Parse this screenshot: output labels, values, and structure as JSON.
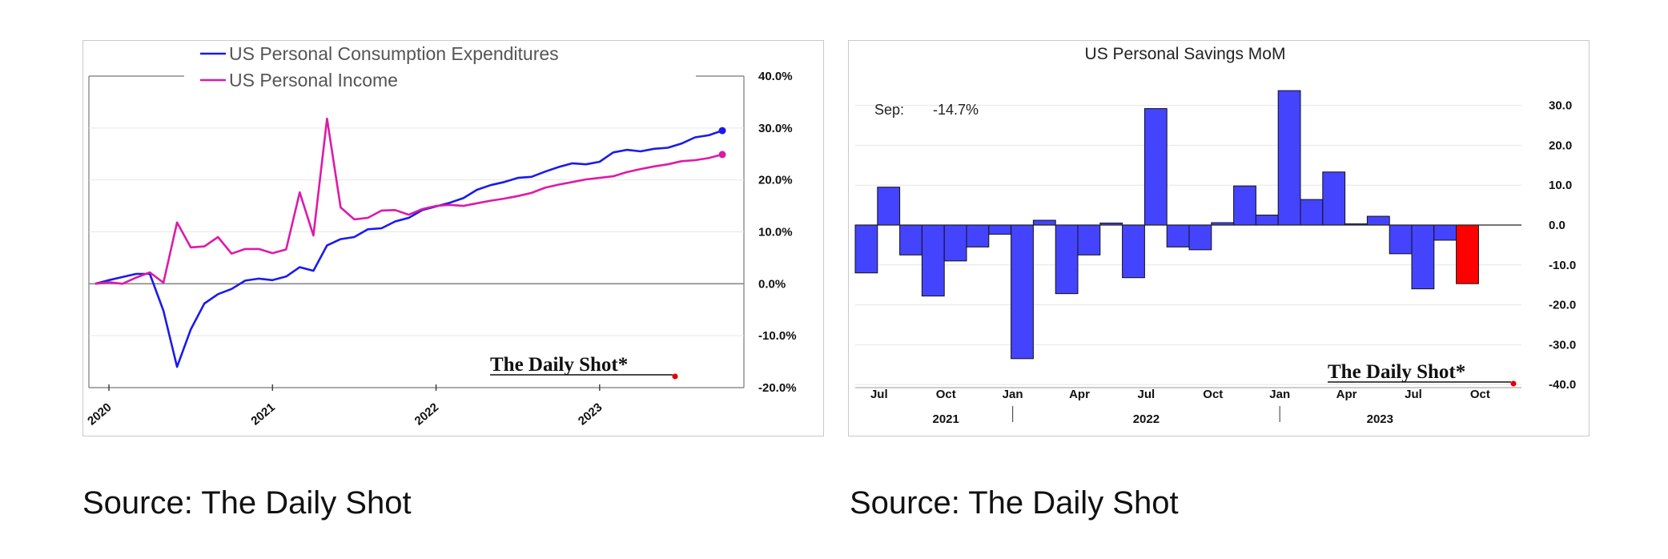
{
  "colors": {
    "pce": "#1a1aee",
    "income": "#dd1aa8",
    "bar": "#4444ff",
    "bar_highlight": "#ff0000",
    "brand_dot": "#e00000"
  },
  "brand": "The Daily Shot",
  "captions": [
    "Source: The Daily Shot",
    "Source: The Daily Shot"
  ],
  "chart_data": [
    {
      "type": "line",
      "title": "",
      "xlabel": "",
      "ylabel": "",
      "x_tick_labels": [
        "2020",
        "2021",
        "2022",
        "2023"
      ],
      "y_tick_labels": [
        "40.0%",
        "30.0%",
        "20.0%",
        "10.0%",
        "0.0%",
        "-10.0%",
        "-20.0%"
      ],
      "ylim": [
        -20,
        40
      ],
      "x_start": "2019-12",
      "grid": true,
      "legend_position": "top",
      "series": [
        {
          "name": "US Personal Consumption Expenditures",
          "color": "#1a1aee",
          "values": [
            0,
            0.7,
            1.3,
            1.9,
            1.9,
            -5.2,
            -16,
            -8.8,
            -3.8,
            -2,
            -1,
            0.6,
            1,
            0.7,
            1.4,
            3.2,
            2.5,
            7.4,
            8.6,
            9,
            10.5,
            10.7,
            12,
            12.7,
            14.2,
            14.9,
            15.6,
            16.5,
            18.1,
            19,
            19.6,
            20.4,
            20.6,
            21.6,
            22.5,
            23.2,
            23,
            23.5,
            25.3,
            25.8,
            25.5,
            26,
            26.2,
            27,
            28.2,
            28.6,
            29.5
          ]
        },
        {
          "name": "US Personal Income",
          "color": "#dd1aa8",
          "values": [
            0,
            0.3,
            0,
            1.2,
            2.2,
            0.2,
            11.8,
            7,
            7.2,
            9,
            5.8,
            6.7,
            6.7,
            5.9,
            6.6,
            17.6,
            9.3,
            31.8,
            14.7,
            12.4,
            12.7,
            14.1,
            14.2,
            13.3,
            14.4,
            15,
            15.2,
            15,
            15.5,
            16,
            16.4,
            16.9,
            17.5,
            18.5,
            19.1,
            19.6,
            20.1,
            20.4,
            20.7,
            21.5,
            22.1,
            22.6,
            23,
            23.6,
            23.8,
            24.2,
            24.9
          ]
        }
      ]
    },
    {
      "type": "bar",
      "title": "US Personal Savings MoM",
      "xlabel": "",
      "ylabel": "",
      "annotation": {
        "label": "Sep:",
        "value": "-14.7%"
      },
      "x_tick_labels": [
        "Jul",
        "Oct",
        "Jan",
        "Apr",
        "Jul",
        "Oct",
        "Jan",
        "Apr",
        "Jul",
        "Oct"
      ],
      "year_labels": [
        "2021",
        "2022",
        "2023"
      ],
      "y_tick_labels": [
        "30.0",
        "20.0",
        "10.0",
        "0.0",
        "-10.0",
        "-20.0",
        "-30.0",
        "-40.0"
      ],
      "ylim": [
        -40,
        35
      ],
      "categories": [
        "2021-06",
        "2021-07",
        "2021-08",
        "2021-09",
        "2021-10",
        "2021-11",
        "2021-12",
        "2022-01",
        "2022-02",
        "2022-03",
        "2022-04",
        "2022-05",
        "2022-06",
        "2022-07",
        "2022-08",
        "2022-09",
        "2022-10",
        "2022-11",
        "2022-12",
        "2023-01",
        "2023-02",
        "2023-03",
        "2023-04",
        "2023-05",
        "2023-06",
        "2023-07",
        "2023-08",
        "2023-09"
      ],
      "values": [
        -12,
        9.5,
        -7.5,
        -17.8,
        -9,
        -5.5,
        -2.3,
        -33.5,
        1.2,
        -17.2,
        -7.5,
        0.5,
        -13.2,
        29.2,
        -5.5,
        -6.2,
        0.6,
        9.8,
        2.5,
        33.7,
        6.4,
        13.3,
        0.3,
        2.2,
        -7.2,
        -16,
        -3.8,
        -14.7
      ],
      "highlight": "2023-09",
      "grid": true
    }
  ]
}
